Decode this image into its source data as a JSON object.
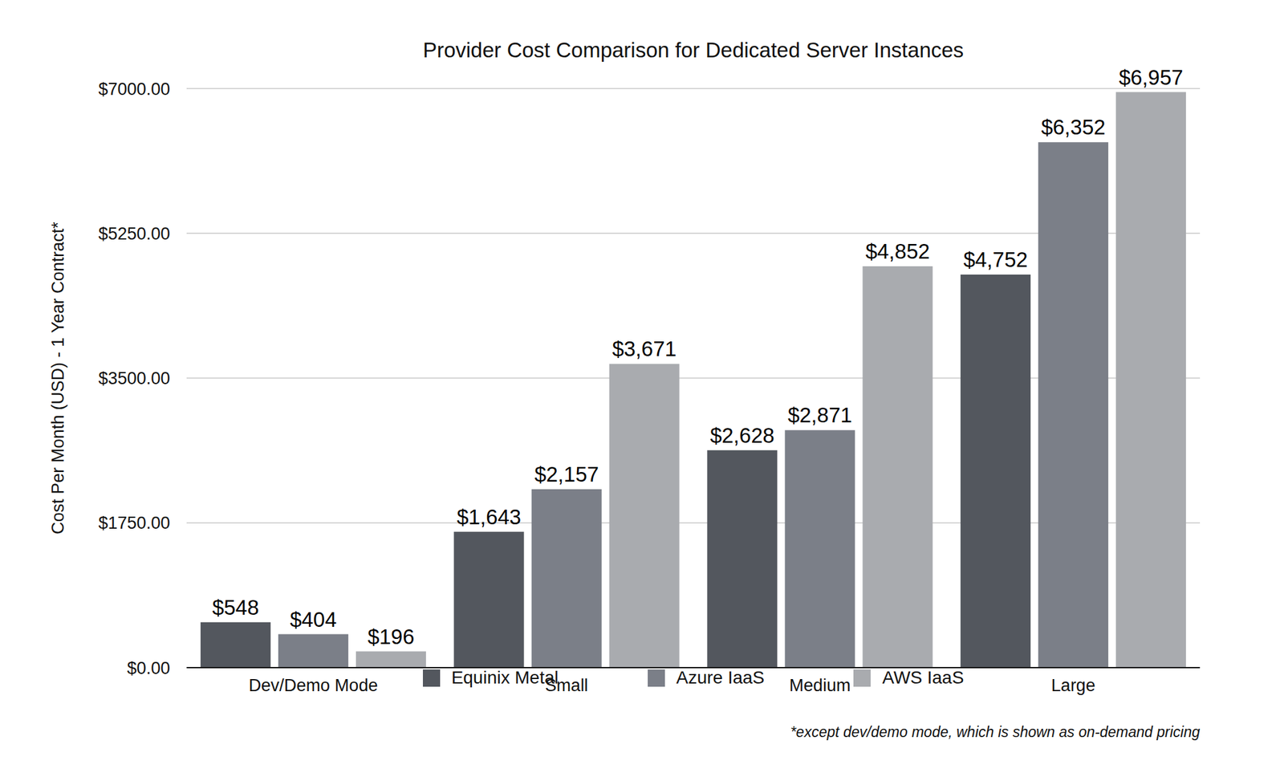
{
  "chart_data": {
    "type": "bar",
    "title": "Provider Cost Comparison for Dedicated Server Instances",
    "y_label": "Cost Per Month (USD) - 1 Year Contract*",
    "annotations": [
      "*except dev/demo mode, which is shown as on-demand pricing"
    ],
    "categories": [
      "Dev/Demo Mode",
      "Small",
      "Medium",
      "Large"
    ],
    "series": [
      {
        "name": "Equinix Metal",
        "color": "#53575e",
        "values": [
          548,
          1643,
          2628,
          4752
        ],
        "value_labels": [
          "$548",
          "$1,643",
          "$2,628",
          "$4,752"
        ]
      },
      {
        "name": "Azure IaaS",
        "color": "#7b7f88",
        "values": [
          404,
          2157,
          2871,
          6352
        ],
        "value_labels": [
          "$404",
          "$2,157",
          "$2,871",
          "$6,352"
        ]
      },
      {
        "name": "AWS IaaS",
        "color": "#a9abaf",
        "values": [
          196,
          3671,
          4852,
          6957
        ],
        "value_labels": [
          "$196",
          "$3,671",
          "$4,852",
          "$6,957"
        ]
      }
    ],
    "ylim": [
      0,
      7000
    ],
    "yticks": [
      {
        "value": 0,
        "label": "$0.00"
      },
      {
        "value": 1750,
        "label": "$1750.00"
      },
      {
        "value": 3500,
        "label": "$3500.00"
      },
      {
        "value": 5250,
        "label": "$5250.00"
      },
      {
        "value": 7000,
        "label": "$7000.00"
      }
    ],
    "grid": true,
    "legend": "bottom",
    "data_labels": true
  }
}
